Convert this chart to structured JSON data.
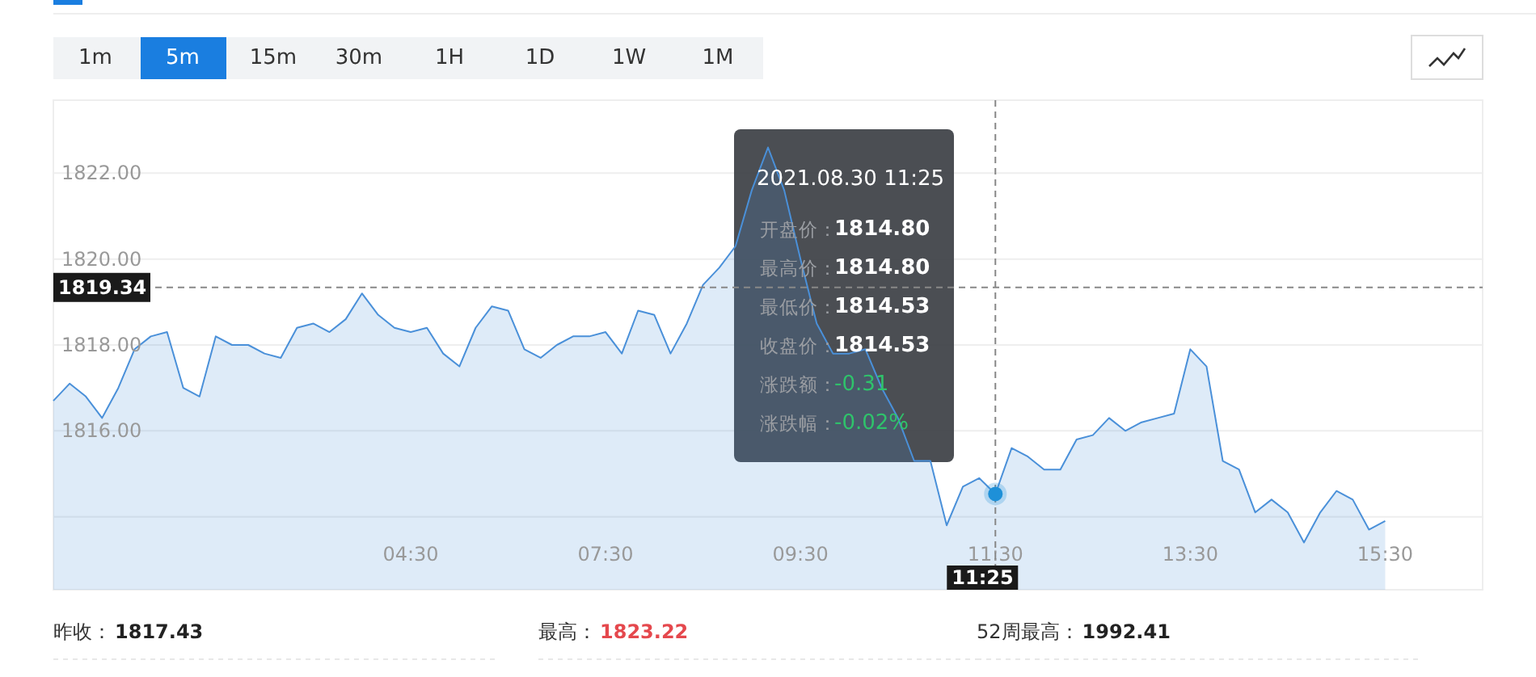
{
  "chart_data": {
    "type": "area",
    "grid": "y",
    "categories": [
      null,
      null,
      null,
      null,
      null,
      null,
      null,
      null,
      null,
      null,
      null,
      null,
      null,
      null,
      null,
      null,
      null,
      null,
      null,
      null,
      null,
      null,
      "04:30",
      null,
      null,
      null,
      null,
      null,
      null,
      null,
      null,
      null,
      null,
      null,
      "07:30",
      null,
      null,
      null,
      null,
      null,
      null,
      null,
      null,
      null,
      null,
      null,
      "09:30",
      null,
      null,
      null,
      null,
      null,
      null,
      null,
      null,
      null,
      null,
      null,
      "11:30",
      null,
      null,
      null,
      null,
      null,
      null,
      null,
      null,
      null,
      null,
      null,
      "13:30",
      null,
      null,
      null,
      null,
      null,
      null,
      null,
      null,
      null,
      null,
      null,
      "15:30",
      null,
      null,
      null,
      null,
      null,
      null
    ],
    "ylim": [
      1812.3,
      1823.7
    ],
    "yticks": [
      {
        "value": 1814,
        "label": null
      },
      {
        "value": 1816,
        "label": "1816.00"
      },
      {
        "value": 1818,
        "label": "1818.00"
      },
      {
        "value": 1820,
        "label": "1820.00"
      },
      {
        "value": 1822,
        "label": "1822.00"
      }
    ],
    "series": [
      {
        "color": "#4a90d9",
        "values": [
          1816.7,
          1817.1,
          1816.8,
          1816.3,
          1817.0,
          1817.9,
          1818.2,
          1818.3,
          1817.0,
          1816.8,
          1818.2,
          1818.0,
          1818.0,
          1817.8,
          1817.7,
          1818.4,
          1818.5,
          1818.3,
          1818.6,
          1819.2,
          1818.7,
          1818.4,
          1818.3,
          1818.4,
          1817.8,
          1817.5,
          1818.4,
          1818.9,
          1818.8,
          1817.9,
          1817.7,
          1818.0,
          1818.2,
          1818.2,
          1818.3,
          1817.8,
          1818.8,
          1818.7,
          1817.8,
          1818.5,
          1819.4,
          1819.8,
          1820.3,
          1821.6,
          1822.6,
          1821.6,
          1820.0,
          1818.5,
          1817.8,
          1817.8,
          1817.9,
          1817.0,
          1816.3,
          1815.3,
          1815.3,
          1813.8,
          1814.7,
          1814.9,
          1814.53,
          1815.6,
          1815.4,
          1815.1,
          1815.1,
          1815.8,
          1815.9,
          1816.3,
          1816.0,
          1816.2,
          1816.3,
          1816.4,
          1817.9,
          1817.5,
          1815.3,
          1815.1,
          1814.1,
          1814.4,
          1814.1,
          1813.4,
          1814.1,
          1814.6,
          1814.4,
          1813.7,
          1813.9,
          null,
          null,
          null,
          null,
          null,
          null
        ]
      },
      {
        "type": "scatter",
        "marker": "circle",
        "color": "#1e90d8",
        "x": [
          "11:30"
        ],
        "values": [
          1814.53
        ]
      }
    ],
    "ref_lines": [
      {
        "axis": "y",
        "value": 1819.34,
        "label": "1819.34",
        "line_style": "dashed",
        "color": "#888888"
      },
      {
        "axis": "x",
        "value": "11:30",
        "label": "11:25",
        "line_style": "dashed",
        "color": "#888888"
      }
    ],
    "annotations": [
      "1m",
      "5m",
      "15m",
      "30m",
      "1H",
      "1D",
      "1W",
      "1M",
      "2021.08.30 11:25",
      "开盘价：",
      "最高价：",
      "最低价：",
      "收盘价：",
      "涨跌额：",
      "涨跌幅：",
      "1814.80",
      "1814.80",
      "1814.53",
      "1814.53",
      "-0.31",
      "-0.02%",
      "昨收：",
      "1817.43",
      "最高：",
      "1823.22",
      "52周最高：",
      "1992.41"
    ]
  }
}
